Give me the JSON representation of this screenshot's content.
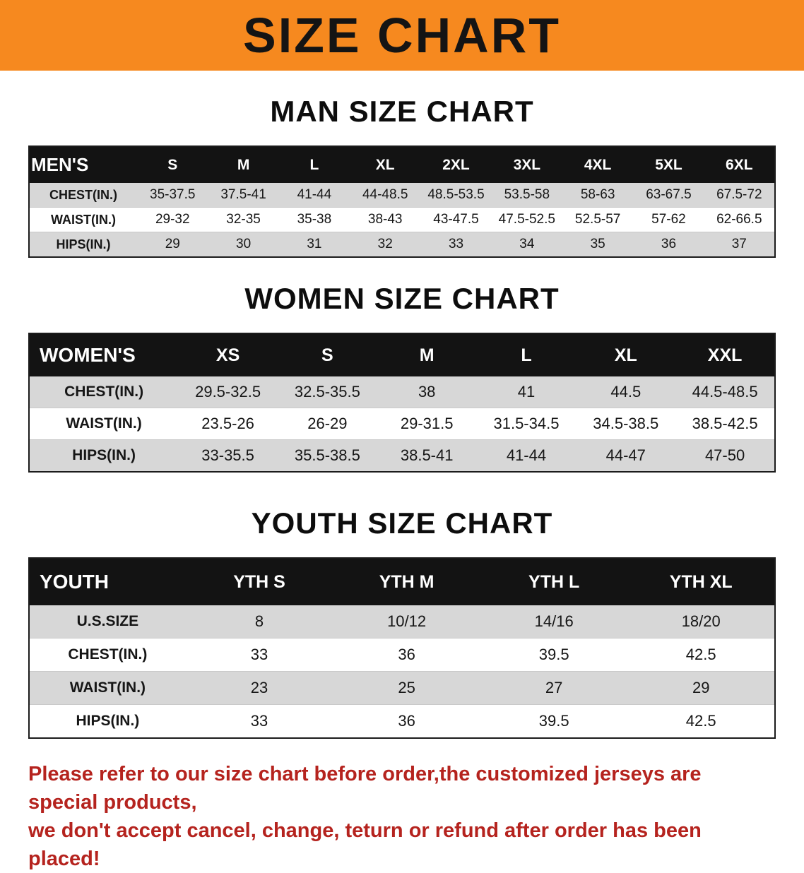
{
  "banner": {
    "title": "SIZE CHART"
  },
  "colors": {
    "banner_orange": "#f6891f",
    "table_header_black": "#131313",
    "stripe_gray": "#d7d7d7",
    "disclaimer_red": "#b5231e"
  },
  "sections": [
    {
      "heading": "MAN SIZE CHART",
      "table": {
        "header": [
          "MEN'S",
          "S",
          "M",
          "L",
          "XL",
          "2XL",
          "3XL",
          "4XL",
          "5XL",
          "6XL"
        ],
        "rows": [
          [
            "CHEST(IN.)",
            "35-37.5",
            "37.5-41",
            "41-44",
            "44-48.5",
            "48.5-53.5",
            "53.5-58",
            "58-63",
            "63-67.5",
            "67.5-72"
          ],
          [
            "WAIST(IN.)",
            "29-32",
            "32-35",
            "35-38",
            "38-43",
            "43-47.5",
            "47.5-52.5",
            "52.5-57",
            "57-62",
            "62-66.5"
          ],
          [
            "HIPS(IN.)",
            "29",
            "30",
            "31",
            "32",
            "33",
            "34",
            "35",
            "36",
            "37"
          ]
        ]
      }
    },
    {
      "heading": "WOMEN SIZE CHART",
      "table": {
        "header": [
          "WOMEN'S",
          "XS",
          "S",
          "M",
          "L",
          "XL",
          "XXL"
        ],
        "rows": [
          [
            "CHEST(IN.)",
            "29.5-32.5",
            "32.5-35.5",
            "38",
            "41",
            "44.5",
            "44.5-48.5"
          ],
          [
            "WAIST(IN.)",
            "23.5-26",
            "26-29",
            "29-31.5",
            "31.5-34.5",
            "34.5-38.5",
            "38.5-42.5"
          ],
          [
            "HIPS(IN.)",
            "33-35.5",
            "35.5-38.5",
            "38.5-41",
            "41-44",
            "44-47",
            "47-50"
          ]
        ]
      }
    },
    {
      "heading": "YOUTH SIZE CHART",
      "table": {
        "header": [
          "YOUTH",
          "YTH S",
          "YTH M",
          "YTH L",
          "YTH XL"
        ],
        "rows": [
          [
            "U.S.SIZE",
            "8",
            "10/12",
            "14/16",
            "18/20"
          ],
          [
            "CHEST(IN.)",
            "33",
            "36",
            "39.5",
            "42.5"
          ],
          [
            "WAIST(IN.)",
            "23",
            "25",
            "27",
            "29"
          ],
          [
            "HIPS(IN.)",
            "33",
            "36",
            "39.5",
            "42.5"
          ]
        ]
      }
    }
  ],
  "footer": {
    "lines": [
      "Please refer to our size chart before order,the customized jerseys are special products,",
      "we don't accept cancel, change, teturn or refund after order has been placed!"
    ]
  }
}
